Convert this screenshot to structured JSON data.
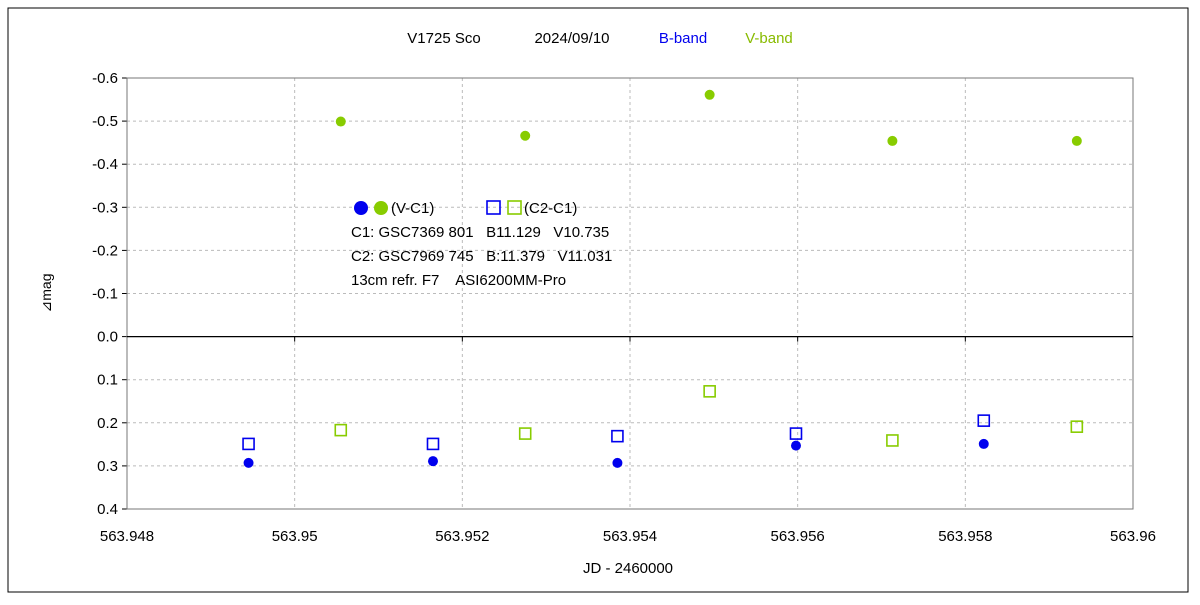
{
  "chart_data": {
    "type": "scatter",
    "title": {
      "object": "V1725 Sco",
      "date": "2024/09/10",
      "b_band": "B-band",
      "v_band": "V-band"
    },
    "xlabel": "JD - 2460000",
    "ylabel": "⊿mag",
    "xlim": [
      563.948,
      563.96
    ],
    "ylim": [
      -0.6,
      0.4
    ],
    "y_inverted": true,
    "grid": true,
    "x_ticks": [
      {
        "value": 563.948,
        "label": "563.948"
      },
      {
        "value": 563.95,
        "label": "563.95"
      },
      {
        "value": 563.952,
        "label": "563.952"
      },
      {
        "value": 563.954,
        "label": "563.954"
      },
      {
        "value": 563.956,
        "label": "563.956"
      },
      {
        "value": 563.958,
        "label": "563.958"
      },
      {
        "value": 563.96,
        "label": "563.96"
      }
    ],
    "y_ticks": [
      {
        "value": -0.6,
        "label": "-0.6"
      },
      {
        "value": -0.5,
        "label": "-0.5"
      },
      {
        "value": -0.4,
        "label": "-0.4"
      },
      {
        "value": -0.3,
        "label": "-0.3"
      },
      {
        "value": -0.2,
        "label": "-0.2"
      },
      {
        "value": -0.1,
        "label": "-0.1"
      },
      {
        "value": 0.0,
        "label": "0.0"
      },
      {
        "value": 0.1,
        "label": "0.1"
      },
      {
        "value": 0.2,
        "label": "0.2"
      },
      {
        "value": 0.3,
        "label": "0.3"
      },
      {
        "value": 0.4,
        "label": "0.4"
      }
    ],
    "series": [
      {
        "band": "B",
        "kind": "V-C1",
        "marker": "filled-circle",
        "color": "#0000ee",
        "x": [
          563.94945,
          563.95165,
          563.95385,
          563.95598,
          563.95822
        ],
        "y": [
          0.293,
          0.289,
          0.293,
          0.253,
          0.249
        ]
      },
      {
        "band": "V",
        "kind": "V-C1",
        "marker": "filled-circle",
        "color": "#88cc00",
        "x": [
          563.95055,
          563.95275,
          563.95495,
          563.95713,
          563.95933
        ],
        "y": [
          -0.499,
          -0.466,
          -0.561,
          -0.454,
          -0.454
        ]
      },
      {
        "band": "B",
        "kind": "C2-C1",
        "marker": "open-square",
        "color": "#0000ee",
        "x": [
          563.94945,
          563.95165,
          563.95385,
          563.95598,
          563.95822
        ],
        "y": [
          0.249,
          0.249,
          0.231,
          0.225,
          0.195
        ]
      },
      {
        "band": "V",
        "kind": "C2-C1",
        "marker": "open-square",
        "color": "#88cc00",
        "x": [
          563.95055,
          563.95275,
          563.95495,
          563.95713,
          563.95933
        ],
        "y": [
          0.217,
          0.225,
          0.127,
          0.241,
          0.209
        ]
      }
    ],
    "legend": {
      "placement": "upper-left-inside",
      "vc1_label": "(V-C1)",
      "c2c1_label": "(C2-C1)"
    },
    "annotations": [
      "C1: GSC7369 801   B11.129   V10.735",
      "C2: GSC7969 745   B:11.379   V11.031",
      "13cm refr. F7    ASI6200MM-Pro"
    ]
  }
}
